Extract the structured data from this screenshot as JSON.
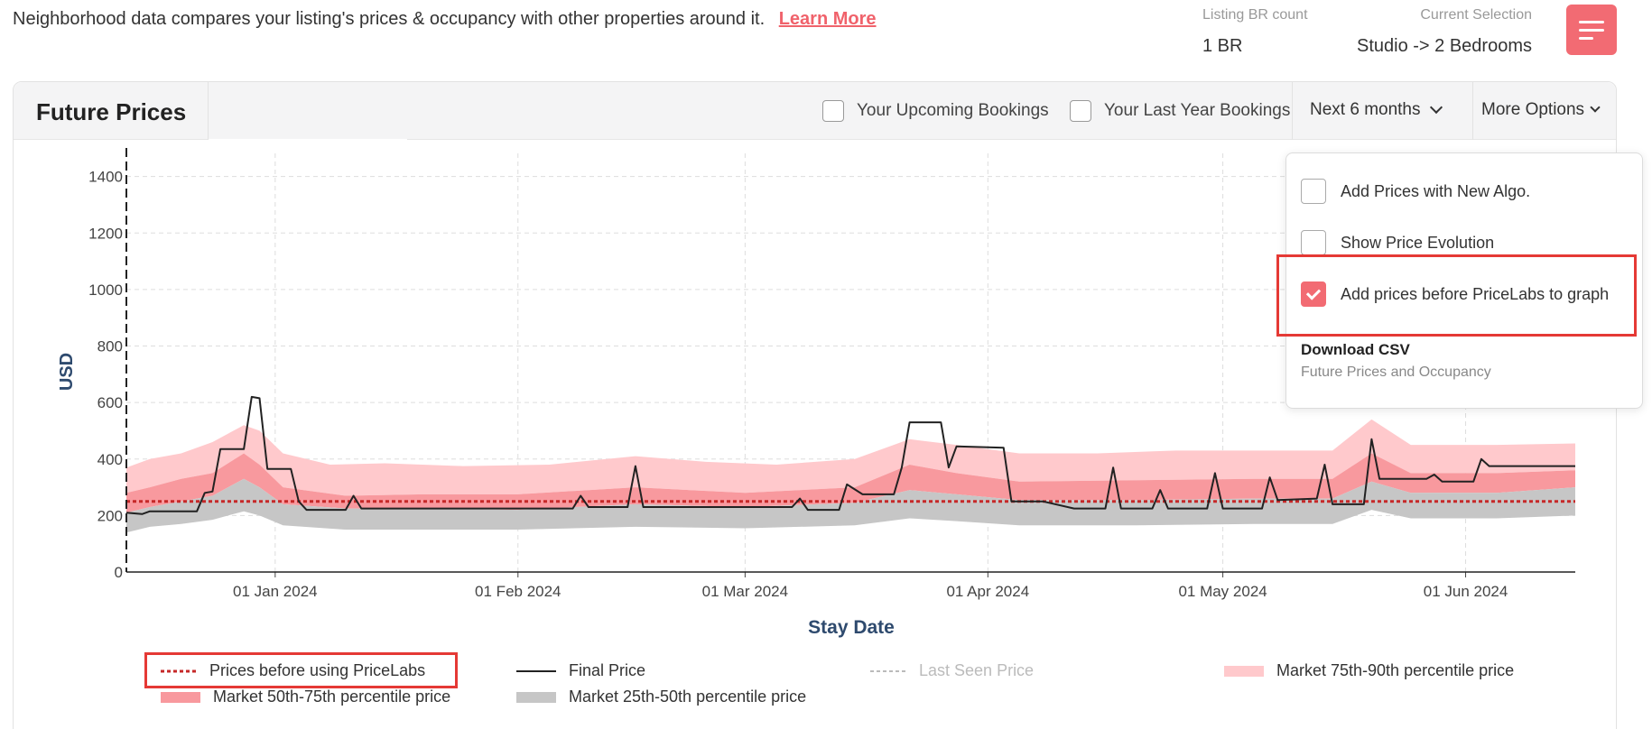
{
  "info": {
    "text": "Neighborhood data compares your listing's prices & occupancy with other properties around it.",
    "learn_more": "Learn More"
  },
  "stats": {
    "br_label": "Listing BR count",
    "br_value": "1 BR",
    "selection_label": "Current Selection",
    "selection_value": "Studio -> 2 Bedrooms"
  },
  "card": {
    "title": "Future Prices",
    "upcoming_bookings": "Your Upcoming Bookings",
    "last_year_bookings": "Your Last Year Bookings",
    "period": "Next 6 months",
    "more_options": "More Options"
  },
  "popup": {
    "items": [
      {
        "label": "Add Prices with New Algo.",
        "checked": false
      },
      {
        "label": "Show Price Evolution",
        "checked": false
      },
      {
        "label": "Add prices before PriceLabs to graph",
        "checked": true
      }
    ],
    "download_title": "Download CSV",
    "download_sub": "Future Prices and Occupancy"
  },
  "legend": {
    "before": "Prices before using PriceLabs",
    "final": "Final Price",
    "last_seen": "Last Seen Price",
    "p75_90": "Market 75th-90th percentile price",
    "p50_75": "Market 50th-75th percentile price",
    "p25_50": "Market 25th-50th percentile price"
  },
  "colors": {
    "accent": "#f26b73",
    "before_line": "#c62828",
    "final_line": "#222222",
    "last_seen": "#bbbbbb",
    "band_75_90": "#ffc9cc",
    "band_50_75": "#f8999e",
    "band_25_50": "#c6c6c6",
    "highlight": "#e53935"
  },
  "chart_data": {
    "type": "area",
    "xlabel": "Stay Date",
    "ylabel": "USD",
    "ylim": [
      0,
      1450
    ],
    "yticks": [
      0,
      200,
      400,
      600,
      800,
      1000,
      1200,
      1400
    ],
    "x_start": "2023-12-13",
    "x_end": "2024-06-15",
    "xticks": [
      {
        "date": "2024-01-01",
        "label": "01 Jan 2024"
      },
      {
        "date": "2024-02-01",
        "label": "01 Feb 2024"
      },
      {
        "date": "2024-03-01",
        "label": "01 Mar 2024"
      },
      {
        "date": "2024-04-01",
        "label": "01 Apr 2024"
      },
      {
        "date": "2024-05-01",
        "label": "01 May 2024"
      },
      {
        "date": "2024-06-01",
        "label": "01 Jun 2024"
      }
    ],
    "grid": true,
    "before_pricelabs": 250,
    "final_price": [
      {
        "x": "2023-12-13",
        "y": 210
      },
      {
        "x": "2023-12-15",
        "y": 205
      },
      {
        "x": "2023-12-16",
        "y": 215
      },
      {
        "x": "2023-12-22",
        "y": 215
      },
      {
        "x": "2023-12-23",
        "y": 280
      },
      {
        "x": "2023-12-24",
        "y": 285
      },
      {
        "x": "2023-12-25",
        "y": 435
      },
      {
        "x": "2023-12-28",
        "y": 435
      },
      {
        "x": "2023-12-29",
        "y": 620
      },
      {
        "x": "2023-12-30",
        "y": 615
      },
      {
        "x": "2023-12-31",
        "y": 365
      },
      {
        "x": "2024-01-03",
        "y": 365
      },
      {
        "x": "2024-01-04",
        "y": 250
      },
      {
        "x": "2024-01-05",
        "y": 220
      },
      {
        "x": "2024-01-10",
        "y": 220
      },
      {
        "x": "2024-01-11",
        "y": 270
      },
      {
        "x": "2024-01-12",
        "y": 225
      },
      {
        "x": "2024-02-01",
        "y": 225
      },
      {
        "x": "2024-02-08",
        "y": 225
      },
      {
        "x": "2024-02-09",
        "y": 270
      },
      {
        "x": "2024-02-10",
        "y": 230
      },
      {
        "x": "2024-02-15",
        "y": 230
      },
      {
        "x": "2024-02-16",
        "y": 375
      },
      {
        "x": "2024-02-17",
        "y": 230
      },
      {
        "x": "2024-03-07",
        "y": 230
      },
      {
        "x": "2024-03-08",
        "y": 260
      },
      {
        "x": "2024-03-09",
        "y": 220
      },
      {
        "x": "2024-03-13",
        "y": 220
      },
      {
        "x": "2024-03-14",
        "y": 310
      },
      {
        "x": "2024-03-16",
        "y": 275
      },
      {
        "x": "2024-03-20",
        "y": 275
      },
      {
        "x": "2024-03-21",
        "y": 370
      },
      {
        "x": "2024-03-22",
        "y": 530
      },
      {
        "x": "2024-03-26",
        "y": 530
      },
      {
        "x": "2024-03-27",
        "y": 370
      },
      {
        "x": "2024-03-28",
        "y": 445
      },
      {
        "x": "2024-04-03",
        "y": 440
      },
      {
        "x": "2024-04-04",
        "y": 250
      },
      {
        "x": "2024-04-08",
        "y": 250
      },
      {
        "x": "2024-04-12",
        "y": 225
      },
      {
        "x": "2024-04-16",
        "y": 225
      },
      {
        "x": "2024-04-17",
        "y": 370
      },
      {
        "x": "2024-04-18",
        "y": 225
      },
      {
        "x": "2024-04-22",
        "y": 225
      },
      {
        "x": "2024-04-23",
        "y": 290
      },
      {
        "x": "2024-04-24",
        "y": 225
      },
      {
        "x": "2024-04-29",
        "y": 225
      },
      {
        "x": "2024-04-30",
        "y": 350
      },
      {
        "x": "2024-05-01",
        "y": 225
      },
      {
        "x": "2024-05-06",
        "y": 225
      },
      {
        "x": "2024-05-07",
        "y": 335
      },
      {
        "x": "2024-05-08",
        "y": 255
      },
      {
        "x": "2024-05-13",
        "y": 260
      },
      {
        "x": "2024-05-14",
        "y": 380
      },
      {
        "x": "2024-05-15",
        "y": 240
      },
      {
        "x": "2024-05-19",
        "y": 240
      },
      {
        "x": "2024-05-20",
        "y": 470
      },
      {
        "x": "2024-05-21",
        "y": 330
      },
      {
        "x": "2024-05-27",
        "y": 330
      },
      {
        "x": "2024-05-28",
        "y": 345
      },
      {
        "x": "2024-05-29",
        "y": 320
      },
      {
        "x": "2024-06-02",
        "y": 320
      },
      {
        "x": "2024-06-03",
        "y": 400
      },
      {
        "x": "2024-06-04",
        "y": 375
      },
      {
        "x": "2024-06-15",
        "y": 375
      }
    ],
    "p90": [
      {
        "x": "2023-12-13",
        "y": 370
      },
      {
        "x": "2023-12-16",
        "y": 400
      },
      {
        "x": "2023-12-20",
        "y": 420
      },
      {
        "x": "2023-12-24",
        "y": 460
      },
      {
        "x": "2023-12-28",
        "y": 520
      },
      {
        "x": "2023-12-30",
        "y": 500
      },
      {
        "x": "2024-01-02",
        "y": 420
      },
      {
        "x": "2024-01-08",
        "y": 380
      },
      {
        "x": "2024-01-15",
        "y": 385
      },
      {
        "x": "2024-01-25",
        "y": 375
      },
      {
        "x": "2024-02-05",
        "y": 380
      },
      {
        "x": "2024-02-16",
        "y": 410
      },
      {
        "x": "2024-02-25",
        "y": 390
      },
      {
        "x": "2024-03-05",
        "y": 380
      },
      {
        "x": "2024-03-15",
        "y": 400
      },
      {
        "x": "2024-03-22",
        "y": 470
      },
      {
        "x": "2024-03-28",
        "y": 450
      },
      {
        "x": "2024-04-05",
        "y": 420
      },
      {
        "x": "2024-04-15",
        "y": 420
      },
      {
        "x": "2024-04-25",
        "y": 430
      },
      {
        "x": "2024-05-05",
        "y": 430
      },
      {
        "x": "2024-05-15",
        "y": 430
      },
      {
        "x": "2024-05-20",
        "y": 540
      },
      {
        "x": "2024-05-25",
        "y": 450
      },
      {
        "x": "2024-06-05",
        "y": 450
      },
      {
        "x": "2024-06-15",
        "y": 455
      }
    ],
    "p75": [
      {
        "x": "2023-12-13",
        "y": 280
      },
      {
        "x": "2023-12-16",
        "y": 300
      },
      {
        "x": "2023-12-20",
        "y": 330
      },
      {
        "x": "2023-12-24",
        "y": 350
      },
      {
        "x": "2023-12-28",
        "y": 420
      },
      {
        "x": "2023-12-30",
        "y": 380
      },
      {
        "x": "2024-01-02",
        "y": 300
      },
      {
        "x": "2024-01-10",
        "y": 270
      },
      {
        "x": "2024-01-20",
        "y": 275
      },
      {
        "x": "2024-02-01",
        "y": 275
      },
      {
        "x": "2024-02-16",
        "y": 300
      },
      {
        "x": "2024-03-01",
        "y": 280
      },
      {
        "x": "2024-03-15",
        "y": 300
      },
      {
        "x": "2024-03-22",
        "y": 380
      },
      {
        "x": "2024-03-28",
        "y": 350
      },
      {
        "x": "2024-04-05",
        "y": 320
      },
      {
        "x": "2024-04-20",
        "y": 325
      },
      {
        "x": "2024-05-05",
        "y": 330
      },
      {
        "x": "2024-05-15",
        "y": 330
      },
      {
        "x": "2024-05-20",
        "y": 420
      },
      {
        "x": "2024-05-25",
        "y": 350
      },
      {
        "x": "2024-06-05",
        "y": 350
      },
      {
        "x": "2024-06-15",
        "y": 360
      }
    ],
    "p50": [
      {
        "x": "2023-12-13",
        "y": 210
      },
      {
        "x": "2023-12-16",
        "y": 230
      },
      {
        "x": "2023-12-20",
        "y": 250
      },
      {
        "x": "2023-12-24",
        "y": 270
      },
      {
        "x": "2023-12-28",
        "y": 330
      },
      {
        "x": "2023-12-30",
        "y": 300
      },
      {
        "x": "2024-01-02",
        "y": 240
      },
      {
        "x": "2024-01-10",
        "y": 225
      },
      {
        "x": "2024-01-20",
        "y": 225
      },
      {
        "x": "2024-02-01",
        "y": 220
      },
      {
        "x": "2024-02-16",
        "y": 240
      },
      {
        "x": "2024-03-01",
        "y": 230
      },
      {
        "x": "2024-03-15",
        "y": 245
      },
      {
        "x": "2024-03-22",
        "y": 290
      },
      {
        "x": "2024-03-28",
        "y": 275
      },
      {
        "x": "2024-04-05",
        "y": 255
      },
      {
        "x": "2024-04-20",
        "y": 255
      },
      {
        "x": "2024-05-05",
        "y": 260
      },
      {
        "x": "2024-05-15",
        "y": 260
      },
      {
        "x": "2024-05-20",
        "y": 320
      },
      {
        "x": "2024-05-25",
        "y": 280
      },
      {
        "x": "2024-06-05",
        "y": 280
      },
      {
        "x": "2024-06-15",
        "y": 300
      }
    ],
    "p25": [
      {
        "x": "2023-12-13",
        "y": 140
      },
      {
        "x": "2023-12-16",
        "y": 160
      },
      {
        "x": "2023-12-20",
        "y": 170
      },
      {
        "x": "2023-12-24",
        "y": 185
      },
      {
        "x": "2023-12-28",
        "y": 215
      },
      {
        "x": "2023-12-30",
        "y": 200
      },
      {
        "x": "2024-01-02",
        "y": 165
      },
      {
        "x": "2024-01-10",
        "y": 150
      },
      {
        "x": "2024-01-20",
        "y": 150
      },
      {
        "x": "2024-02-01",
        "y": 150
      },
      {
        "x": "2024-02-16",
        "y": 160
      },
      {
        "x": "2024-03-01",
        "y": 155
      },
      {
        "x": "2024-03-15",
        "y": 165
      },
      {
        "x": "2024-03-22",
        "y": 190
      },
      {
        "x": "2024-03-28",
        "y": 180
      },
      {
        "x": "2024-04-05",
        "y": 165
      },
      {
        "x": "2024-04-20",
        "y": 165
      },
      {
        "x": "2024-05-05",
        "y": 170
      },
      {
        "x": "2024-05-15",
        "y": 170
      },
      {
        "x": "2024-05-20",
        "y": 220
      },
      {
        "x": "2024-05-25",
        "y": 190
      },
      {
        "x": "2024-06-05",
        "y": 190
      },
      {
        "x": "2024-06-15",
        "y": 200
      }
    ]
  }
}
